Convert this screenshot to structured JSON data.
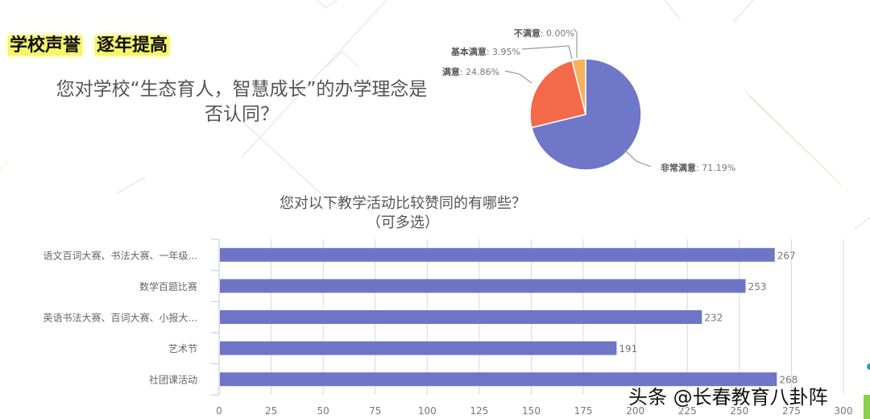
{
  "slide": {
    "heading_part1": "学校声誉",
    "heading_part2": "逐年提高",
    "pie_question": "您对学校“生态育人，智慧成长”的办学理念是否认同？",
    "bar_title_line1": "您对以下教学活动比较赞同的有哪些？",
    "bar_title_line2": "（可多选）",
    "watermark": "头条 @长春教育八卦阵"
  },
  "colors": {
    "pie_very_satisfied": "#6f77c8",
    "pie_satisfied": "#f4694a",
    "pie_basic": "#f6b25c",
    "pie_unsatisfied": "#e8e8e8",
    "bar": "#6f75c6",
    "highlight": "#f6f56a",
    "grid": "#d9d9d9",
    "text": "#666666"
  },
  "chart_data": [
    {
      "type": "pie",
      "title": "您对学校“生态育人，智慧成长”的办学理念是否认同？",
      "slices": [
        {
          "label": "非常满意",
          "value": 71.19,
          "display": "非常满意: 71.19%"
        },
        {
          "label": "满意",
          "value": 24.86,
          "display": "满意: 24.86%"
        },
        {
          "label": "基本满意",
          "value": 3.95,
          "display": "基本满意: 3.95%"
        },
        {
          "label": "不满意",
          "value": 0.0,
          "display": "不满意: 0.00%"
        }
      ],
      "legend_position": "none (leader-line labels)"
    },
    {
      "type": "bar",
      "orientation": "horizontal",
      "title": "您对以下教学活动比较赞同的有哪些？（可多选）",
      "categories": [
        "语文百词大赛、书法大赛、一年级...",
        "数学百题比赛",
        "英语书法大赛、百词大赛、小报大...",
        "艺术节",
        "社团课活动"
      ],
      "values": [
        267,
        253,
        232,
        191,
        268
      ],
      "xlabel": "",
      "ylabel": "",
      "xlim": [
        0,
        300
      ],
      "xticks": [
        0,
        25,
        50,
        75,
        100,
        125,
        150,
        175,
        200,
        225,
        250,
        275,
        300
      ],
      "grid": "vertical",
      "data_labels": true
    }
  ]
}
